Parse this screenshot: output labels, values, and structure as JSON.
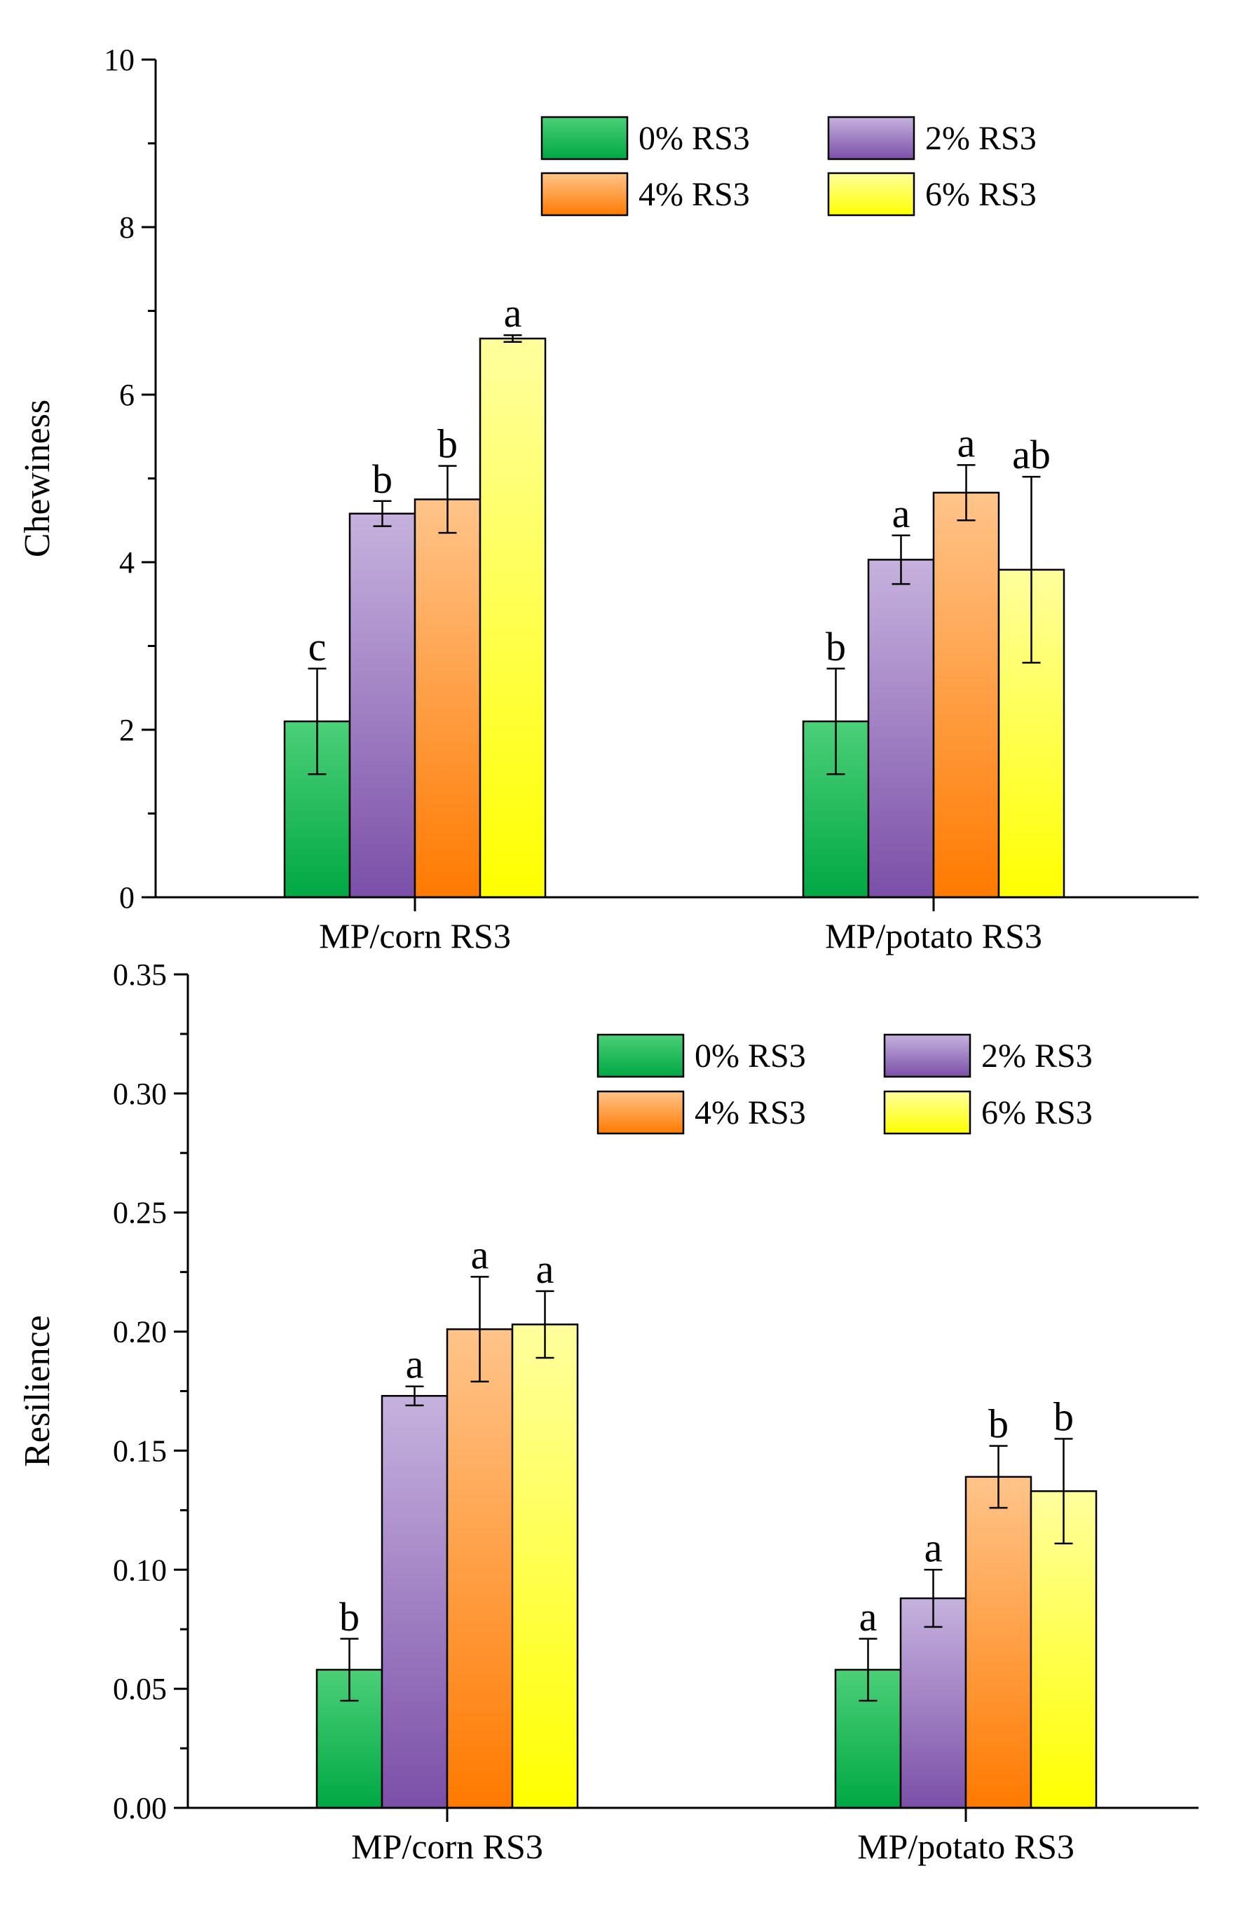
{
  "colors": {
    "0% RS3": [
      "#4ccf78",
      "#00a844"
    ],
    "2% RS3": [
      "#c6b2de",
      "#7b4fa8"
    ],
    "4% RS3": [
      "#ffc48a",
      "#ff7a00"
    ],
    "6% RS3": [
      "#ffff9e",
      "#ffff00"
    ]
  },
  "chart_data": [
    {
      "type": "bar",
      "ylabel": "Chewiness",
      "xlabel": "",
      "ylim": [
        0,
        10
      ],
      "yticks": [
        "0",
        "2",
        "4",
        "6",
        "8",
        "10"
      ],
      "ytick_values": [
        0,
        2,
        4,
        6,
        8,
        10
      ],
      "minor_step": 1,
      "categories": [
        "MP/corn RS3",
        "MP/potato RS3"
      ],
      "legend_position": "top-right",
      "series": [
        {
          "name": "0% RS3",
          "values": [
            2.1,
            2.1
          ],
          "errors": [
            0.63,
            0.63
          ],
          "letters": [
            "c",
            "b"
          ]
        },
        {
          "name": "2% RS3",
          "values": [
            4.58,
            4.03
          ],
          "errors": [
            0.15,
            0.29
          ],
          "letters": [
            "b",
            "a"
          ]
        },
        {
          "name": "4% RS3",
          "values": [
            4.75,
            4.83
          ],
          "errors": [
            0.4,
            0.33
          ],
          "letters": [
            "b",
            "a"
          ]
        },
        {
          "name": "6% RS3",
          "values": [
            6.67,
            3.91
          ],
          "errors": [
            0.04,
            1.11
          ],
          "letters": [
            "a",
            "ab"
          ]
        }
      ]
    },
    {
      "type": "bar",
      "ylabel": "Resilience",
      "xlabel": "",
      "ylim": [
        0,
        0.35
      ],
      "yticks": [
        "0.00",
        "0.05",
        "0.10",
        "0.15",
        "0.20",
        "0.25",
        "0.30",
        "0.35"
      ],
      "ytick_values": [
        0,
        0.05,
        0.1,
        0.15,
        0.2,
        0.25,
        0.3,
        0.35
      ],
      "minor_step": 0.025,
      "categories": [
        "MP/corn RS3",
        "MP/potato RS3"
      ],
      "legend_position": "top-right",
      "series": [
        {
          "name": "0% RS3",
          "values": [
            0.058,
            0.058
          ],
          "errors": [
            0.013,
            0.013
          ],
          "letters": [
            "b",
            "a"
          ]
        },
        {
          "name": "2% RS3",
          "values": [
            0.173,
            0.088
          ],
          "errors": [
            0.004,
            0.012
          ],
          "letters": [
            "a",
            "a"
          ]
        },
        {
          "name": "4% RS3",
          "values": [
            0.201,
            0.139
          ],
          "errors": [
            0.022,
            0.013
          ],
          "letters": [
            "a",
            "b"
          ]
        },
        {
          "name": "6% RS3",
          "values": [
            0.203,
            0.133
          ],
          "errors": [
            0.014,
            0.022
          ],
          "letters": [
            "a",
            "b"
          ]
        }
      ]
    }
  ]
}
